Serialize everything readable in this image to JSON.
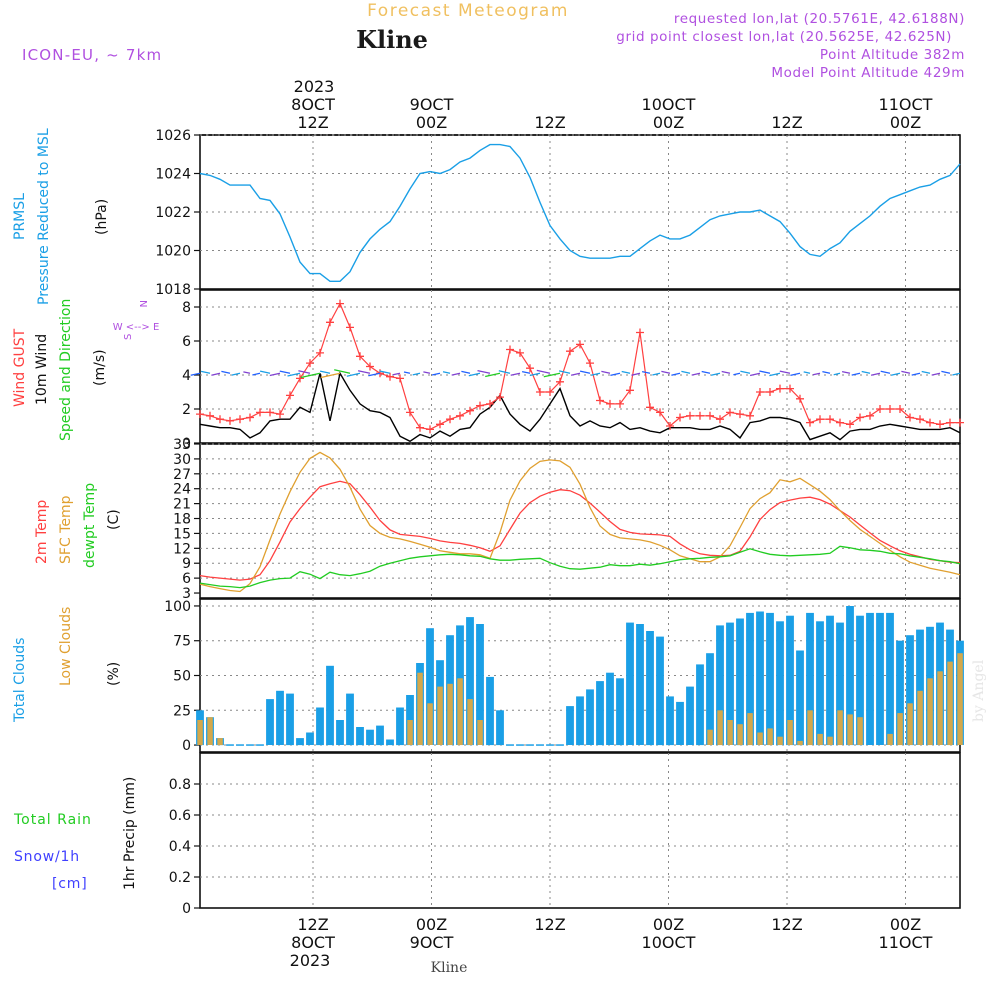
{
  "header": {
    "title": "Forecast Meteogram",
    "location": "Kline",
    "model": "ICON-EU, ~ 7km",
    "requested": "requested lon,lat (20.5761E, 42.6188N)",
    "gridpoint": "grid point closest lon,lat (20.5625E, 42.625N)",
    "point_alt": "Point Altitude 382m",
    "model_alt": "Model Point Altitude 429m",
    "footer_location": "Kline",
    "watermark": "by Angel"
  },
  "colors": {
    "pressure": "#1a9fe6",
    "gust": "#ff4040",
    "wind10m": "#000000",
    "temp2m": "#ff4040",
    "sfc": "#e0a030",
    "dewpt": "#22cc22",
    "total_clouds": "#1a9fe6",
    "low_clouds": "#d4a84b",
    "magenta": "#b050e0",
    "rain": "#22cc22",
    "snow": "#4040ff"
  },
  "time_axis": {
    "top_year": "2023",
    "labels": [
      {
        "h": 12,
        "line1": "8OCT",
        "line2": "12Z"
      },
      {
        "h": 24,
        "line1": "9OCT",
        "line2": "00Z"
      },
      {
        "h": 36,
        "line1": "",
        "line2": "12Z"
      },
      {
        "h": 48,
        "line1": "10OCT",
        "line2": "00Z"
      },
      {
        "h": 60,
        "line1": "",
        "line2": "12Z"
      },
      {
        "h": 72,
        "line1": "11OCT",
        "line2": "00Z"
      }
    ],
    "bottom_year": "2023"
  },
  "chart_data": [
    {
      "type": "line",
      "title": "PRMSL Pressure Reduced to MSL",
      "ylabel": "(hPa)",
      "ylim": [
        1018,
        1026
      ],
      "yticks": [
        "1018",
        "1020",
        "1022",
        "1024",
        "1026"
      ],
      "x_hours": [
        0,
        1,
        2,
        3,
        4,
        5,
        6,
        7,
        8,
        9,
        10,
        11,
        12,
        13,
        14,
        15,
        16,
        17,
        18,
        19,
        20,
        21,
        22,
        23,
        24,
        25,
        26,
        27,
        28,
        29,
        30,
        31,
        32,
        33,
        34,
        35,
        36,
        37,
        38,
        39,
        40,
        41,
        42,
        43,
        44,
        45,
        46,
        47,
        48,
        49,
        50,
        51,
        52,
        53,
        54,
        55,
        56,
        57,
        58,
        59,
        60,
        61,
        62,
        63,
        64,
        65,
        66,
        67,
        68,
        69,
        70,
        71,
        72,
        73,
        74,
        75,
        76
      ],
      "series": [
        {
          "name": "PRMSL",
          "values": [
            1024.0,
            1023.9,
            1023.7,
            1023.4,
            1023.4,
            1023.4,
            1022.7,
            1022.6,
            1021.9,
            1020.7,
            1019.4,
            1018.8,
            1018.8,
            1018.4,
            1018.4,
            1018.9,
            1019.9,
            1020.6,
            1021.1,
            1021.5,
            1022.3,
            1023.2,
            1024.0,
            1024.1,
            1024.0,
            1024.2,
            1024.6,
            1024.8,
            1025.2,
            1025.5,
            1025.5,
            1025.4,
            1024.8,
            1023.8,
            1022.5,
            1021.3,
            1020.6,
            1020.0,
            1019.7,
            1019.6,
            1019.6,
            1019.6,
            1019.7,
            1019.7,
            1020.1,
            1020.5,
            1020.8,
            1020.6,
            1020.6,
            1020.8,
            1021.2,
            1021.6,
            1021.8,
            1021.9,
            1022.0,
            1022.0,
            1022.1,
            1021.8,
            1021.5,
            1020.9,
            1020.2,
            1019.8,
            1019.7,
            1020.1,
            1020.4,
            1021.0,
            1021.4,
            1021.8,
            1022.3,
            1022.7,
            1022.9,
            1023.1,
            1023.3,
            1023.4,
            1023.7,
            1023.9,
            1024.5
          ]
        }
      ]
    },
    {
      "type": "line",
      "title": "Wind GUST / 10m Wind Speed and Direction",
      "ylabel": "(m/s)",
      "ylim": [
        0,
        9
      ],
      "yticks": [
        "0",
        "2",
        "4",
        "6",
        "8"
      ],
      "compass": [
        "N",
        "W <--> E",
        "S"
      ],
      "series": [
        {
          "name": "Wind GUST",
          "values": [
            1.7,
            1.6,
            1.4,
            1.3,
            1.4,
            1.5,
            1.8,
            1.8,
            1.7,
            2.8,
            3.8,
            4.7,
            5.3,
            7.1,
            8.2,
            6.8,
            5.1,
            4.5,
            4.1,
            3.9,
            3.8,
            1.8,
            0.9,
            0.8,
            1.1,
            1.4,
            1.6,
            1.9,
            2.2,
            2.3,
            2.7,
            5.5,
            5.3,
            4.4,
            3.0,
            3.0,
            3.6,
            5.4,
            5.8,
            4.7,
            2.5,
            2.3,
            2.3,
            3.1,
            6.5,
            2.1,
            1.8,
            1.0,
            1.5,
            1.6,
            1.6,
            1.6,
            1.4,
            1.8,
            1.7,
            1.6,
            3.0,
            3.0,
            3.2,
            3.2,
            2.6,
            1.2,
            1.4,
            1.4,
            1.2,
            1.1,
            1.5,
            1.6,
            2.0,
            2.0,
            2.0,
            1.5,
            1.4,
            1.2,
            1.1,
            1.2,
            1.2
          ]
        },
        {
          "name": "10m Wind",
          "values": [
            1.1,
            1.0,
            0.9,
            0.9,
            0.8,
            0.3,
            0.6,
            1.3,
            1.4,
            1.4,
            2.1,
            1.8,
            4.1,
            1.3,
            4.1,
            3.1,
            2.3,
            1.9,
            1.8,
            1.5,
            0.4,
            0.1,
            0.5,
            0.3,
            0.7,
            0.4,
            0.8,
            0.9,
            1.7,
            2.1,
            2.8,
            1.7,
            1.1,
            0.7,
            1.4,
            2.3,
            3.2,
            1.6,
            1.0,
            1.3,
            1.0,
            0.9,
            1.2,
            0.8,
            0.9,
            0.7,
            0.6,
            0.9,
            0.9,
            0.9,
            0.8,
            0.8,
            1.0,
            0.8,
            0.3,
            1.2,
            1.3,
            1.5,
            1.5,
            1.4,
            1.2,
            0.2,
            0.4,
            0.6,
            0.2,
            0.7,
            0.8,
            0.8,
            1.0,
            1.1,
            1.0,
            0.9,
            0.8,
            0.8,
            0.8,
            0.9,
            0.6
          ]
        }
      ]
    },
    {
      "type": "line",
      "title": "2m Temp / SFC Temp / dewpt Temp",
      "ylabel": "(C)",
      "ylim": [
        2,
        33
      ],
      "yticks": [
        "3",
        "6",
        "9",
        "12",
        "15",
        "18",
        "21",
        "24",
        "27",
        "30",
        "33"
      ],
      "series": [
        {
          "name": "2m Temp",
          "values": [
            6.5,
            6.2,
            6.0,
            5.8,
            5.6,
            5.8,
            6.7,
            9.5,
            13.3,
            17.3,
            20.0,
            22.3,
            24.4,
            25.0,
            25.5,
            25.0,
            22.8,
            20.3,
            17.6,
            15.7,
            14.8,
            14.6,
            14.4,
            14.0,
            13.5,
            13.2,
            13.0,
            12.6,
            12.1,
            11.4,
            12.5,
            15.8,
            19.1,
            21.2,
            22.5,
            23.3,
            23.8,
            23.6,
            22.7,
            21.1,
            19.3,
            17.4,
            15.8,
            15.2,
            14.9,
            14.8,
            14.7,
            14.4,
            12.9,
            11.7,
            10.9,
            10.6,
            10.5,
            10.6,
            11.4,
            14.3,
            17.8,
            19.8,
            21.2,
            21.7,
            22.1,
            22.3,
            21.8,
            20.9,
            19.6,
            18.3,
            16.7,
            15.1,
            13.6,
            12.5,
            11.5,
            10.8,
            10.3,
            9.8,
            9.5,
            9.2,
            9.1
          ]
        },
        {
          "name": "SFC Temp",
          "values": [
            4.8,
            4.3,
            3.9,
            3.5,
            3.3,
            4.9,
            8.3,
            13.7,
            18.9,
            23.4,
            27.3,
            30.1,
            31.3,
            30.2,
            27.9,
            24.3,
            19.9,
            16.6,
            15.0,
            14.2,
            13.9,
            13.4,
            12.8,
            12.2,
            11.5,
            11.2,
            10.9,
            10.9,
            10.7,
            10.0,
            15.2,
            21.7,
            25.6,
            28.1,
            29.5,
            29.8,
            29.6,
            28.3,
            24.9,
            20.2,
            16.5,
            14.8,
            14.1,
            13.9,
            13.7,
            13.3,
            12.6,
            11.7,
            10.5,
            9.9,
            9.3,
            9.3,
            10.3,
            12.5,
            16.2,
            20.0,
            22.0,
            23.2,
            25.8,
            25.4,
            26.1,
            24.8,
            23.5,
            21.8,
            19.6,
            17.6,
            15.8,
            14.4,
            13.0,
            11.6,
            10.3,
            9.2,
            8.6,
            8.0,
            7.6,
            7.2,
            6.7
          ]
        },
        {
          "name": "dewpt Temp",
          "values": [
            5.0,
            4.7,
            4.4,
            4.3,
            4.1,
            4.4,
            5.1,
            5.6,
            5.9,
            6.0,
            7.3,
            6.8,
            5.9,
            7.2,
            6.7,
            6.5,
            6.9,
            7.4,
            8.4,
            9.0,
            9.5,
            10.0,
            10.3,
            10.5,
            10.7,
            10.8,
            10.7,
            10.5,
            10.4,
            9.9,
            9.6,
            9.6,
            9.8,
            9.9,
            10.0,
            9.1,
            8.4,
            7.9,
            7.8,
            8.0,
            8.2,
            8.7,
            8.5,
            8.5,
            8.8,
            8.6,
            8.9,
            9.3,
            9.7,
            9.9,
            10.0,
            10.2,
            10.3,
            10.5,
            11.2,
            11.9,
            11.3,
            10.8,
            10.6,
            10.5,
            10.6,
            10.7,
            10.8,
            11.0,
            12.4,
            12.1,
            11.7,
            11.6,
            11.4,
            11.0,
            10.9,
            10.5,
            10.2,
            9.9,
            9.5,
            9.3,
            8.9
          ]
        }
      ]
    },
    {
      "type": "bar",
      "title": "Total Clouds / Low Clouds",
      "ylabel": "(%)",
      "ylim": [
        -5,
        105
      ],
      "yticks": [
        "0",
        "25",
        "50",
        "75",
        "100"
      ],
      "series": [
        {
          "name": "Total Clouds",
          "values": [
            25,
            20,
            5,
            0,
            0,
            0,
            0,
            33,
            39,
            37,
            5,
            9,
            27,
            57,
            18,
            37,
            13,
            11,
            14,
            4,
            27,
            36,
            59,
            84,
            61,
            79,
            86,
            92,
            87,
            49,
            25,
            0,
            0,
            0,
            0,
            0,
            0,
            28,
            35,
            40,
            46,
            52,
            48,
            88,
            87,
            82,
            78,
            35,
            31,
            42,
            58,
            66,
            86,
            88,
            91,
            95,
            96,
            95,
            89,
            93,
            68,
            95,
            89,
            93,
            88,
            100,
            93,
            95,
            95,
            95,
            75,
            79,
            83,
            85,
            88,
            83,
            75
          ]
        },
        {
          "name": "Low Clouds",
          "values": [
            18,
            20,
            5,
            0,
            0,
            0,
            0,
            0,
            0,
            0,
            0,
            0,
            0,
            0,
            0,
            0,
            0,
            0,
            0,
            0,
            0,
            18,
            52,
            30,
            42,
            44,
            48,
            33,
            18,
            0,
            0,
            0,
            0,
            0,
            0,
            0,
            0,
            0,
            0,
            0,
            0,
            0,
            0,
            0,
            0,
            0,
            0,
            0,
            0,
            0,
            0,
            11,
            25,
            18,
            15,
            23,
            9,
            12,
            6,
            18,
            3,
            25,
            8,
            6,
            25,
            22,
            20,
            0,
            0,
            8,
            23,
            30,
            39,
            48,
            53,
            60,
            66
          ]
        }
      ]
    },
    {
      "type": "bar",
      "title": "1hr Precip",
      "ylabel": "1hr Precip (mm)",
      "ylim": [
        0,
        1
      ],
      "yticks": [
        "0",
        "0.2",
        "0.4",
        "0.6",
        "0.8"
      ],
      "legend": [
        "Total Rain",
        "Snow/1h",
        "[cm]"
      ],
      "series": [
        {
          "name": "Total Rain",
          "values": []
        }
      ]
    }
  ]
}
